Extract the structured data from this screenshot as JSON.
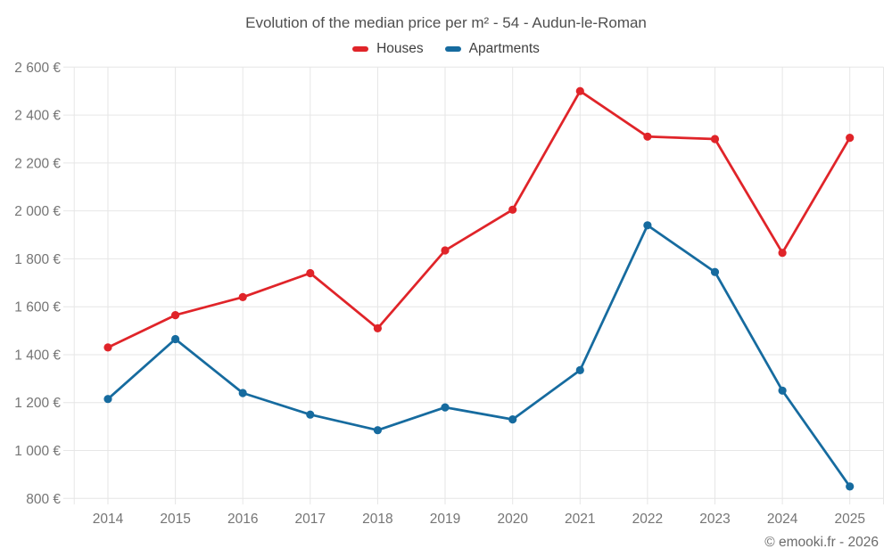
{
  "header": {
    "title": "Evolution of the median price per m² - 54 - Audun-le-Roman"
  },
  "footer": {
    "watermark": "© emooki.fr - 2026"
  },
  "chart_data": {
    "type": "line",
    "title": "Evolution of the median price per m² - 54 - Audun-le-Roman",
    "x": [
      "2014",
      "2015",
      "2016",
      "2017",
      "2018",
      "2019",
      "2020",
      "2021",
      "2022",
      "2023",
      "2024",
      "2025"
    ],
    "series": [
      {
        "name": "Houses",
        "color": "#e02429",
        "values": [
          1430,
          1565,
          1640,
          1740,
          1510,
          1835,
          2005,
          2500,
          2310,
          2300,
          1825,
          2305
        ]
      },
      {
        "name": "Apartments",
        "color": "#166b9f",
        "values": [
          1215,
          1465,
          1240,
          1150,
          1085,
          1180,
          1130,
          1335,
          1940,
          1745,
          1250,
          850
        ]
      }
    ],
    "xlabel": "",
    "ylabel": "",
    "ylim": [
      800,
      2600
    ],
    "y_tick_step": 200,
    "y_tick_suffix": " €",
    "grid": true,
    "legend_position": "top"
  },
  "styles": {
    "background": "#ffffff",
    "grid_color": "#e6e6e6",
    "tick_color": "#757575",
    "title_color": "#4f4f4f",
    "legend_text_color": "#3f3f3f",
    "watermark_color": "#6b6b6b"
  }
}
